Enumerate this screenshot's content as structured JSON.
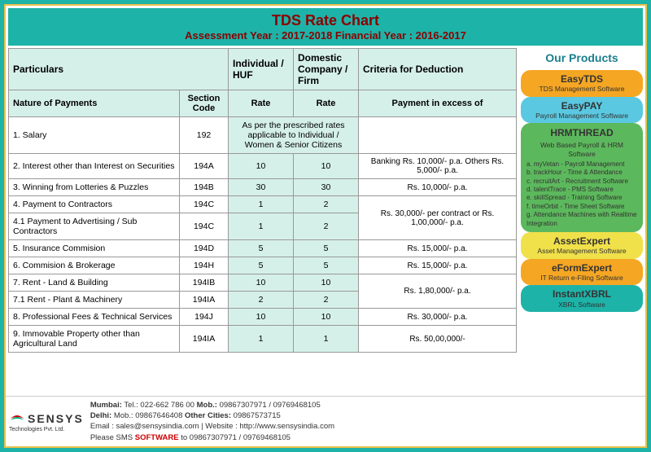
{
  "header": {
    "title": "TDS Rate Chart",
    "subtitle": "Assessment Year : 2017-2018 Financial Year : 2016-2017"
  },
  "table": {
    "headers": {
      "particulars": "Particulars",
      "individual": "Individual / HUF",
      "domestic": "Domestic Company / Firm",
      "criteria": "Criteria for Deduction",
      "nature": "Nature of Payments",
      "section": "Section Code",
      "rate": "Rate",
      "payment_excess": "Payment in excess of"
    },
    "rows": [
      {
        "nature": "1. Salary",
        "section": "192",
        "merged_rate": "As per the prescribed rates applicable to Individual / Women & Senior Citizens",
        "criteria": ""
      },
      {
        "nature": "2. Interest other than Interest on Securities",
        "section": "194A",
        "rate1": "10",
        "rate2": "10",
        "criteria": "Banking Rs. 10,000/- p.a. Others Rs. 5,000/- p.a."
      },
      {
        "nature": "3. Winning from Lotteries & Puzzles",
        "section": "194B",
        "rate1": "30",
        "rate2": "30",
        "criteria": "Rs. 10,000/- p.a."
      },
      {
        "nature": "4. Payment to Contractors",
        "section": "194C",
        "rate1": "1",
        "rate2": "2",
        "criteria_span": 2,
        "criteria": "Rs. 30,000/- per contract or Rs. 1,00,000/- p.a."
      },
      {
        "nature": "4.1 Payment to Advertising / Sub Contractors",
        "section": "194C",
        "rate1": "1",
        "rate2": "2"
      },
      {
        "nature": "5. Insurance Commision",
        "section": "194D",
        "rate1": "5",
        "rate2": "5",
        "criteria": "Rs. 15,000/- p.a."
      },
      {
        "nature": "6. Commision & Brokerage",
        "section": "194H",
        "rate1": "5",
        "rate2": "5",
        "criteria": "Rs. 15,000/- p.a."
      },
      {
        "nature": "7. Rent - Land & Building",
        "section": "194IB",
        "rate1": "10",
        "rate2": "10",
        "criteria_span": 2,
        "criteria": "Rs. 1,80,000/- p.a."
      },
      {
        "nature": "7.1 Rent - Plant & Machinery",
        "section": "194IA",
        "rate1": "2",
        "rate2": "2"
      },
      {
        "nature": "8. Professional Fees & Technical Services",
        "section": "194J",
        "rate1": "10",
        "rate2": "10",
        "criteria": "Rs. 30,000/- p.a."
      },
      {
        "nature": "9. Immovable Property other than Agricultural Land",
        "section": "194IA",
        "rate1": "1",
        "rate2": "1",
        "criteria": "Rs. 50,00,000/-"
      }
    ]
  },
  "sidebar": {
    "title": "Our Products",
    "products": [
      {
        "name": "EasyTDS",
        "sub": "TDS Management Software",
        "bg": "#f5a623"
      },
      {
        "name": "EasyPAY",
        "sub": "Payroll Management Software",
        "bg": "#5ac8e0"
      },
      {
        "name": "HRMTHREAD",
        "sub": "Web Based Payroll & HRM Software",
        "bg": "#5cb85c",
        "items": [
          "a. myVetan - Payroll Management",
          "b. trackHour - Time & Attendance",
          "c. recruitArt - Recruitment Software",
          "d. talentTrace - PMS Software",
          "e. skillSpread - Training Software",
          "f. timeOrbit - Time Sheet Software",
          "g. Attendance Machines with Realtime Integration"
        ]
      },
      {
        "name": "AssetExpert",
        "sub": "Asset Management Software",
        "bg": "#f0e04a"
      },
      {
        "name": "eFormExpert",
        "sub": "IT Return e-Filing Software",
        "bg": "#f5a623"
      },
      {
        "name": "InstantXBRL",
        "sub": "XBRL Software",
        "bg": "#1db3a8"
      }
    ]
  },
  "footer": {
    "company": "SENSYS",
    "company_sub": "Technologies Pvt. Ltd.",
    "line1a": "Mumbai:",
    "line1b": " Tel.: 022-662 786 00 ",
    "line1c": "Mob.:",
    "line1d": " 09867307971 / 09769468105",
    "line2a": "Delhi:",
    "line2b": " Mob.: 09867646408 ",
    "line2c": "Other Cities:",
    "line2d": " 09867573715",
    "line3": "Email : sales@sensysindia.com | Website : http://www.sensysindia.com",
    "line4a": "Please SMS ",
    "line4b": "SOFTWARE",
    "line4c": " to 09867307971 / 09769468105"
  },
  "colors": {
    "rate_bg": "#d5f0e8",
    "header_bg": "#1db3a8"
  }
}
